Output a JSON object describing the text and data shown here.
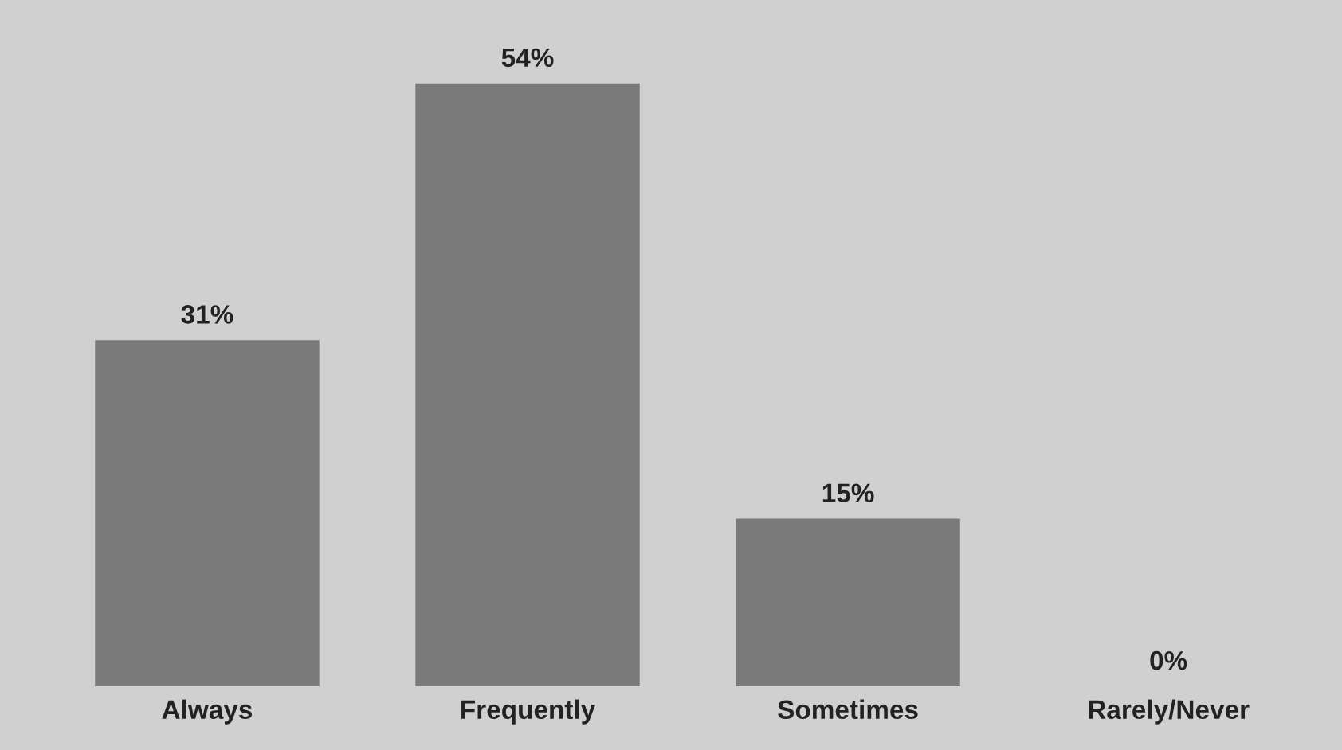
{
  "chart_data": {
    "type": "bar",
    "categories": [
      "Always",
      "Frequently",
      "Sometimes",
      "Rarely/Never"
    ],
    "values": [
      31,
      54,
      15,
      0
    ],
    "value_labels": [
      "31%",
      "54%",
      "15%",
      "0%"
    ],
    "color": "#7a7a7a",
    "grid": false,
    "legend": false
  }
}
